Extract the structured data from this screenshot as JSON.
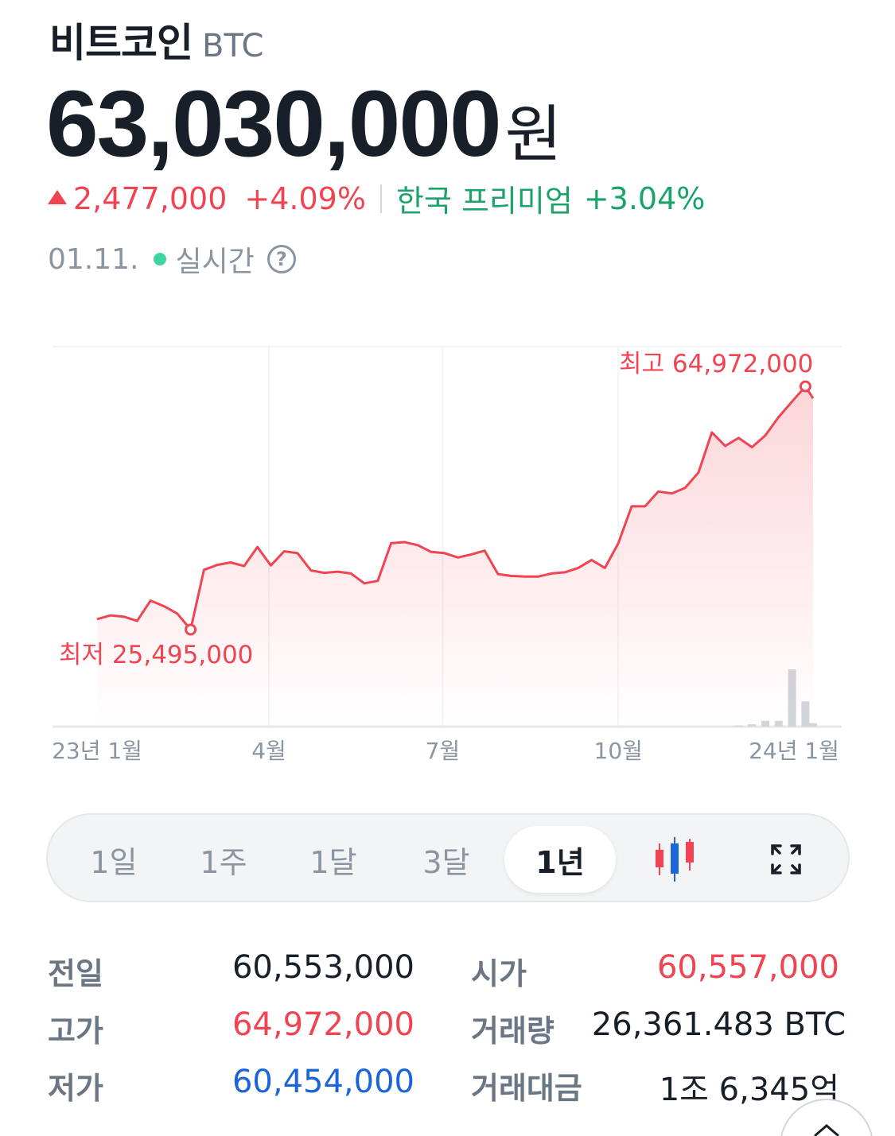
{
  "header": {
    "coin_name": "비트코인",
    "ticker": "BTC",
    "price": "63,030,000",
    "price_unit": "원",
    "change_amount": "2,477,000",
    "change_rate": "+4.09%",
    "premium_label": "한국 프리미엄",
    "premium_rate": "+3.04%",
    "date": "01.11.",
    "live_label": "실시간",
    "help_glyph": "?"
  },
  "colors": {
    "up": "#f04452",
    "down": "#1b64da",
    "premium": "#1ba36a",
    "live": "#3dd6a2",
    "volume": "#d1d6db"
  },
  "chart_data": {
    "type": "line",
    "x": [
      "23-01-01",
      "23-01-08",
      "23-01-15",
      "23-01-22",
      "23-01-29",
      "23-02-05",
      "23-02-12",
      "23-02-19",
      "23-02-26",
      "23-03-05",
      "23-03-12",
      "23-03-19",
      "23-03-26",
      "23-04-02",
      "23-04-09",
      "23-04-16",
      "23-04-23",
      "23-04-30",
      "23-05-07",
      "23-05-14",
      "23-05-21",
      "23-05-28",
      "23-06-04",
      "23-06-11",
      "23-06-18",
      "23-06-25",
      "23-07-02",
      "23-07-09",
      "23-07-16",
      "23-07-23",
      "23-07-30",
      "23-08-06",
      "23-08-13",
      "23-08-20",
      "23-08-27",
      "23-09-03",
      "23-09-10",
      "23-09-17",
      "23-09-24",
      "23-10-01",
      "23-10-08",
      "23-10-15",
      "23-10-22",
      "23-10-29",
      "23-11-05",
      "23-11-12",
      "23-11-19",
      "23-11-26",
      "23-12-03",
      "23-12-10",
      "23-12-17",
      "23-12-24",
      "23-12-31",
      "24-01-07",
      "24-01-11"
    ],
    "series": [
      {
        "values": [
          27.2,
          27.8,
          27.6,
          26.9,
          30.2,
          29.3,
          28.1,
          25.5,
          35.2,
          36.0,
          36.4,
          35.8,
          38.9,
          35.9,
          38.2,
          37.9,
          35.1,
          34.7,
          34.9,
          34.6,
          33.0,
          33.4,
          39.5,
          39.7,
          39.2,
          38.1,
          37.9,
          37.2,
          37.7,
          38.3,
          34.5,
          34.2,
          34.1,
          34.1,
          34.6,
          34.8,
          35.5,
          36.8,
          35.5,
          39.5,
          45.5,
          45.5,
          47.9,
          47.6,
          48.5,
          51.0,
          57.5,
          55.3,
          56.6,
          55.1,
          57.0,
          60.0,
          62.5,
          64.972,
          63.03
        ]
      }
    ],
    "volume": [
      0,
      0,
      0,
      0,
      0,
      0,
      0,
      0,
      0,
      0,
      0,
      0,
      0,
      0,
      0,
      0,
      0,
      0,
      0,
      0,
      0,
      0,
      0,
      0,
      0,
      0,
      0,
      0,
      0,
      0,
      0,
      0,
      0,
      0,
      0,
      0,
      0,
      0,
      0,
      0,
      0,
      0,
      0,
      0,
      0,
      0,
      0,
      0,
      1,
      2,
      5,
      5,
      50,
      22,
      3
    ],
    "units": "백만원",
    "max_label": "최고 64,972,000",
    "min_label": "최저 25,495,000",
    "max_value": 64.972,
    "min_value": 25.495,
    "xticks": [
      "23년 1월",
      "4월",
      "7월",
      "10월",
      "24년 1월"
    ],
    "xtick_dates": [
      "23-01-01",
      "23-04-01",
      "23-07-01",
      "23-10-01",
      "24-01-01"
    ],
    "grid": true,
    "legend": "none"
  },
  "period_tabs": [
    "1일",
    "1주",
    "1달",
    "3달",
    "1년"
  ],
  "active_period": "1년",
  "stats": {
    "prev_close_label": "전일",
    "prev_close": "60,553,000",
    "high_label": "고가",
    "high": "64,972,000",
    "low_label": "저가",
    "low": "60,454,000",
    "open_label": "시가",
    "open": "60,557,000",
    "volume_label": "거래량",
    "volume": "26,361.483 BTC",
    "trade_value_label": "거래대금",
    "trade_value": "1조 6,345억"
  }
}
